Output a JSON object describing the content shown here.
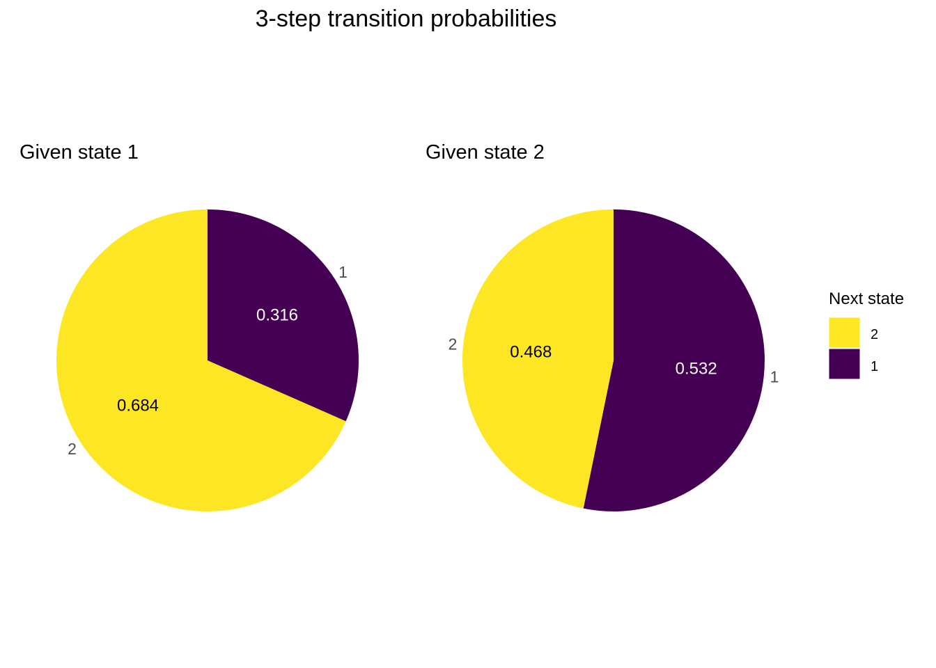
{
  "chart_data": {
    "type": "pie",
    "title": "3-step transition probabilities",
    "legend": {
      "title": "Next state",
      "position": "right",
      "entries": [
        {
          "label": "2",
          "color": "#FDE725"
        },
        {
          "label": "1",
          "color": "#440154"
        }
      ]
    },
    "panels": [
      {
        "title": "Given state 1",
        "slices": [
          {
            "category": "1",
            "value": 0.316,
            "label": "0.316",
            "color": "#440154",
            "label_color": "#ffffff"
          },
          {
            "category": "2",
            "value": 0.684,
            "label": "0.684",
            "color": "#FDE725",
            "label_color": "#000000"
          }
        ]
      },
      {
        "title": "Given state 2",
        "slices": [
          {
            "category": "1",
            "value": 0.532,
            "label": "0.532",
            "color": "#440154",
            "label_color": "#ffffff"
          },
          {
            "category": "2",
            "value": 0.468,
            "label": "0.468",
            "color": "#FDE725",
            "label_color": "#000000"
          }
        ]
      }
    ]
  }
}
